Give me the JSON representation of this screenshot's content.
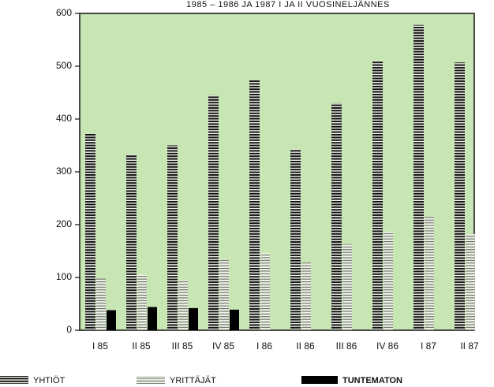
{
  "chart_data": {
    "type": "bar",
    "title": "1985 – 1986 JA 1987 I JA II VUOSINELJÄNNES",
    "xlabel": "",
    "ylabel": "",
    "ylim": [
      0,
      600
    ],
    "yticks": [
      0,
      100,
      200,
      300,
      400,
      500,
      600
    ],
    "grid": false,
    "legend_position": "bottom",
    "plot_background": "#c8e6b4",
    "categories": [
      "I 85",
      "II 85",
      "III 85",
      "IV 85",
      "I 86",
      "II 86",
      "III 86",
      "IV 86",
      "I 87",
      "II 87"
    ],
    "series": [
      {
        "name": "YHTIÖT",
        "pattern": "dense-stripes",
        "color": "#111111",
        "values": [
          372,
          333,
          350,
          445,
          473,
          343,
          430,
          510,
          578,
          507
        ]
      },
      {
        "name": "YRITTÄJÄT",
        "pattern": "light-stripes",
        "color": "#555555",
        "values": [
          98,
          106,
          94,
          135,
          146,
          128,
          163,
          187,
          215,
          182
        ]
      },
      {
        "name": "TUNTEMATON",
        "pattern": "solid",
        "color": "#000000",
        "values": [
          38,
          44,
          42,
          39,
          null,
          null,
          null,
          null,
          null,
          null
        ]
      }
    ]
  }
}
